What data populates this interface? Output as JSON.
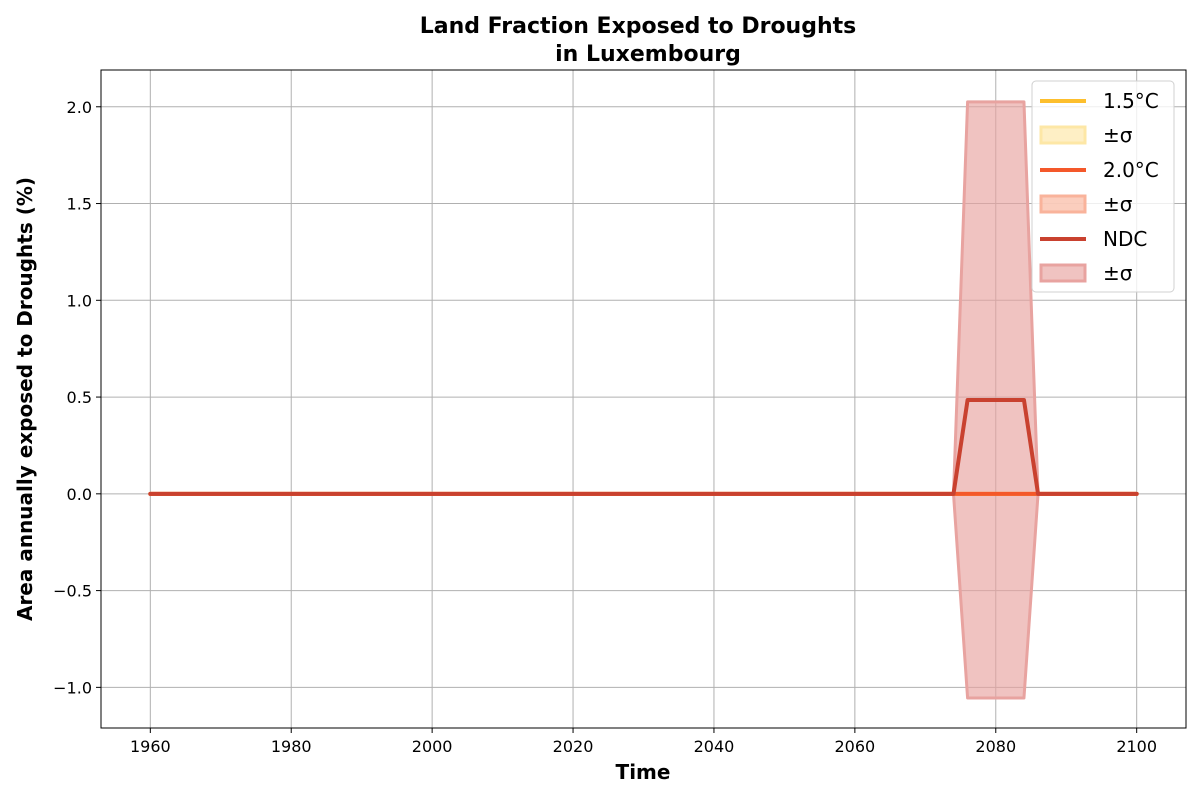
{
  "chart_data": {
    "type": "line",
    "title_line1": "Land Fraction Exposed to Droughts",
    "title_line2": "in Luxembourg",
    "xlabel": "Time",
    "ylabel": "Area annually exposed to Droughts (%)",
    "xlim": [
      1953,
      2107
    ],
    "ylim": [
      -1.21,
      2.19
    ],
    "xticks": [
      1960,
      1980,
      2000,
      2020,
      2040,
      2060,
      2080,
      2100
    ],
    "xtick_labels": [
      "1960",
      "1980",
      "2000",
      "2020",
      "2040",
      "2060",
      "2080",
      "2100"
    ],
    "yticks": [
      -1.0,
      -0.5,
      0.0,
      0.5,
      1.0,
      1.5,
      2.0
    ],
    "ytick_labels": [
      "−1.0",
      "−0.5",
      "0.0",
      "0.5",
      "1.0",
      "1.5",
      "2.0"
    ],
    "grid": true,
    "legend_position": "top-right",
    "series": [
      {
        "name": "1.5°C",
        "band_label": "±σ",
        "color": "#fdbf2d",
        "band_color": "#fde7a6",
        "x": [
          1960,
          2100
        ],
        "values": [
          0,
          0
        ],
        "upper": [
          0,
          0
        ],
        "lower": [
          0,
          0
        ]
      },
      {
        "name": "2.0°C",
        "band_label": "±σ",
        "color": "#f4582a",
        "band_color": "#f9b39b",
        "x": [
          1960,
          2100
        ],
        "values": [
          0,
          0
        ],
        "upper": [
          0,
          0
        ],
        "lower": [
          0,
          0
        ]
      },
      {
        "name": "NDC",
        "band_label": "±σ",
        "color": "#c9412f",
        "band_color": "#e8a3a0",
        "x": [
          1960,
          2074,
          2076,
          2084,
          2086,
          2100
        ],
        "values": [
          0,
          0,
          0.485,
          0.485,
          0,
          0
        ],
        "upper": [
          0,
          0,
          2.025,
          2.025,
          0,
          0
        ],
        "lower": [
          0,
          0,
          -1.055,
          -1.055,
          0,
          0
        ]
      }
    ]
  }
}
